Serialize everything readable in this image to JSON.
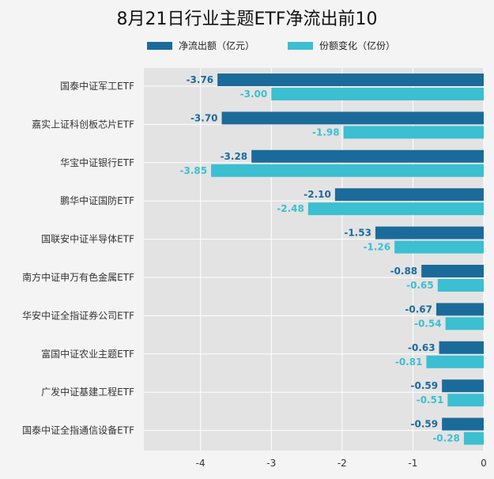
{
  "chart_data": {
    "type": "bar",
    "orientation": "horizontal",
    "title": "8月21日行业主题ETF净流出前10",
    "categories": [
      "国泰中证军工ETF",
      "嘉实上证科创板芯片ETF",
      "华宝中证银行ETF",
      "鹏华中证国防ETF",
      "国联安中证半导体ETF",
      "南方中证申万有色金属ETF",
      "华安中证全指证券公司ETF",
      "富国中证农业主题ETF",
      "广发中证基建工程ETF",
      "国泰中证全指通信设备ETF"
    ],
    "series": [
      {
        "name": "净流出额（亿元）",
        "color": "#1b6b9a",
        "values": [
          -3.76,
          -3.7,
          -3.28,
          -2.1,
          -1.53,
          -0.88,
          -0.67,
          -0.63,
          -0.59,
          -0.59
        ],
        "labels": [
          "-3.76",
          "-3.70",
          "-3.28",
          "-2.10",
          "-1.53",
          "-0.88",
          "-0.67",
          "-0.63",
          "-0.59",
          "-0.59"
        ]
      },
      {
        "name": "份额变化（亿份）",
        "color": "#3bbfd1",
        "values": [
          -3.0,
          -1.98,
          -3.85,
          -2.48,
          -1.26,
          -0.65,
          -0.54,
          -0.81,
          -0.51,
          -0.28
        ],
        "labels": [
          "-3.00",
          "-1.98",
          "-3.85",
          "-2.48",
          "-1.26",
          "-0.65",
          "-0.54",
          "-0.81",
          "-0.51",
          "-0.28"
        ]
      }
    ],
    "xlim": [
      -4.8,
      0
    ],
    "xticks": [
      -4,
      -3,
      -2,
      -1,
      0
    ],
    "xtick_labels": [
      "-4",
      "-3",
      "-2",
      "-1",
      "0"
    ],
    "grid": true,
    "legend_position": "top"
  }
}
